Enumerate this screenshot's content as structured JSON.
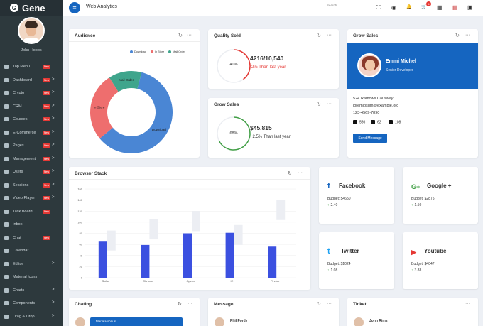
{
  "brand": {
    "logo_letter": "G",
    "name": "Gene"
  },
  "user": {
    "name": "John Hobbs"
  },
  "sidebar": {
    "items": [
      {
        "label": "Top Menu",
        "badge": "New",
        "chevron": ""
      },
      {
        "label": "Dashboard",
        "badge": "New",
        "chevron": ">"
      },
      {
        "label": "Crypto",
        "badge": "New",
        "chevron": ">"
      },
      {
        "label": "CRM",
        "badge": "New",
        "chevron": ">"
      },
      {
        "label": "Courses",
        "badge": "New",
        "chevron": ">"
      },
      {
        "label": "E-Commerce",
        "badge": "New",
        "chevron": ">"
      },
      {
        "label": "Pages",
        "badge": "New",
        "chevron": ">"
      },
      {
        "label": "Management",
        "badge": "New",
        "chevron": ">"
      },
      {
        "label": "Users",
        "badge": "New",
        "chevron": ">"
      },
      {
        "label": "Sessions",
        "badge": "New",
        "chevron": ">"
      },
      {
        "label": "Video Player",
        "badge": "New",
        "chevron": ">"
      },
      {
        "label": "Task Board",
        "badge": "New",
        "chevron": ""
      },
      {
        "label": "Inbox",
        "badge": "",
        "chevron": ""
      },
      {
        "label": "Chat",
        "badge": "New",
        "chevron": ""
      },
      {
        "label": "Calendar",
        "badge": "",
        "chevron": ""
      },
      {
        "label": "Editor",
        "badge": "",
        "chevron": ">"
      },
      {
        "label": "Material Icons",
        "badge": "",
        "chevron": ""
      },
      {
        "label": "Charts",
        "badge": "",
        "chevron": ">"
      },
      {
        "label": "Components",
        "badge": "",
        "chevron": ">"
      },
      {
        "label": "Drag & Drop",
        "badge": "",
        "chevron": ">"
      }
    ]
  },
  "topbar": {
    "menu_icon": "≡",
    "title": "Web Analytics",
    "search_placeholder": "Search",
    "fullscreen_icon": "⛶",
    "account_icon": "◉",
    "bell_icon": "🔔",
    "cart_icon": "🛒",
    "cart_count": "4",
    "apps_icon": "▦",
    "flag_icon": "▤",
    "chat_icon": "▣"
  },
  "card_icons": {
    "refresh": "↻",
    "more": "···"
  },
  "audience": {
    "title": "Audience",
    "legend": [
      "Download",
      "In Store",
      "Mail Order"
    ],
    "colors": [
      "#4a86d4",
      "#ee6e6e",
      "#3fa58c"
    ],
    "values": [
      60,
      27,
      13
    ],
    "labels": [
      "Download",
      "In Store",
      "Mail Order"
    ]
  },
  "quality_sold": {
    "title": "Quality Sold",
    "percent_label": "40%",
    "percent": 40,
    "value": "4216/10,540",
    "change": "-2% Than last year",
    "ring_color": "#e53935",
    "change_color": "#e53935"
  },
  "grow_sales_small": {
    "title": "Grow Sales",
    "percent_label": "68%",
    "percent": 68,
    "value": "$45,815",
    "change": "+2.5% Than last year",
    "ring_color": "#43a047",
    "change_color": "#333333"
  },
  "grow_sales_profile": {
    "title": "Grow Sales",
    "name": "Emmi Michel",
    "role": "Senior Developer",
    "address": "524 Ikamows Causway",
    "email": "loremipsum@example.org",
    "phone": "123-4569-7890",
    "facebook_count": "556",
    "instagram_count": "62",
    "twitter_count": "108",
    "button": "Send Message"
  },
  "chart_data": {
    "type": "bar",
    "title": "Browser Stack",
    "categories": [
      "Safari",
      "Chrome",
      "Opera",
      "IE+",
      "Firefox"
    ],
    "series": [
      {
        "name": "Primary",
        "values": [
          65,
          59,
          80,
          81,
          56
        ],
        "color": "#3b50e0"
      },
      {
        "name": "Secondary",
        "values": [
          85,
          105,
          120,
          95,
          140
        ],
        "color": "#eceef3"
      }
    ],
    "yticks": [
      "0",
      "20",
      "40",
      "60",
      "80",
      "100",
      "120",
      "140",
      "160"
    ],
    "ylim": [
      0,
      160
    ]
  },
  "social": [
    {
      "title": "Facebook",
      "icon": "f",
      "color": "#1565c0",
      "budget": "Budget: $4650",
      "growth": "2.40",
      "arrow": "↑"
    },
    {
      "title": "Google +",
      "icon": "G+",
      "color": "#43a047",
      "budget": "Budget: $2875",
      "growth": "1.50",
      "arrow": "↑"
    },
    {
      "title": "Twitter",
      "icon": "t",
      "color": "#1da1f2",
      "budget": "Budget: $1024",
      "growth": "1.08",
      "arrow": "↑"
    },
    {
      "title": "Youtube",
      "icon": "▶",
      "color": "#e53935",
      "budget": "Budget: $4047",
      "growth": "3.88",
      "arrow": "↑"
    }
  ],
  "chating": {
    "title": "Chating",
    "name": "Maria Hobnus"
  },
  "message": {
    "title": "Message",
    "name": "Phil Fordy"
  },
  "ticket": {
    "title": "Ticket",
    "name": "John Rims"
  }
}
